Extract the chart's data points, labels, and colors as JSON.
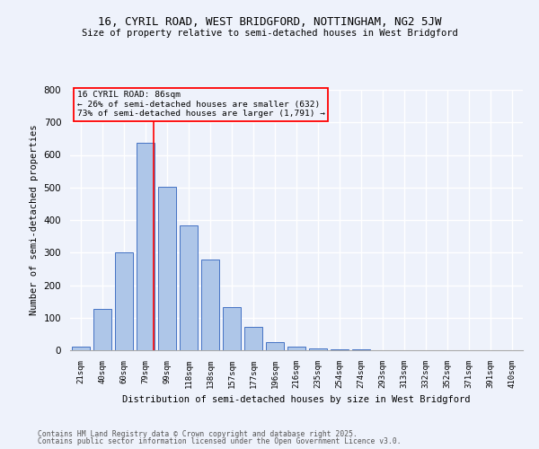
{
  "title1": "16, CYRIL ROAD, WEST BRIDGFORD, NOTTINGHAM, NG2 5JW",
  "title2": "Size of property relative to semi-detached houses in West Bridgford",
  "bar_labels": [
    "21sqm",
    "40sqm",
    "60sqm",
    "79sqm",
    "99sqm",
    "118sqm",
    "138sqm",
    "157sqm",
    "177sqm",
    "196sqm",
    "216sqm",
    "235sqm",
    "254sqm",
    "274sqm",
    "293sqm",
    "313sqm",
    "332sqm",
    "352sqm",
    "371sqm",
    "391sqm",
    "410sqm"
  ],
  "bar_values": [
    10,
    128,
    302,
    638,
    502,
    383,
    278,
    132,
    73,
    25,
    12,
    5,
    2,
    2,
    0,
    0,
    0,
    0,
    0,
    0,
    0
  ],
  "bar_color": "#aec6e8",
  "bar_edge_color": "#4472c4",
  "xlabel": "Distribution of semi-detached houses by size in West Bridgford",
  "ylabel": "Number of semi-detached properties",
  "ylim": [
    0,
    800
  ],
  "yticks": [
    0,
    100,
    200,
    300,
    400,
    500,
    600,
    700,
    800
  ],
  "annotation_text_line1": "16 CYRIL ROAD: 86sqm",
  "annotation_text_line2": "← 26% of semi-detached houses are smaller (632)",
  "annotation_text_line3": "73% of semi-detached houses are larger (1,791) →",
  "footer1": "Contains HM Land Registry data © Crown copyright and database right 2025.",
  "footer2": "Contains public sector information licensed under the Open Government Licence v3.0.",
  "background_color": "#eef2fb",
  "grid_color": "#ffffff"
}
